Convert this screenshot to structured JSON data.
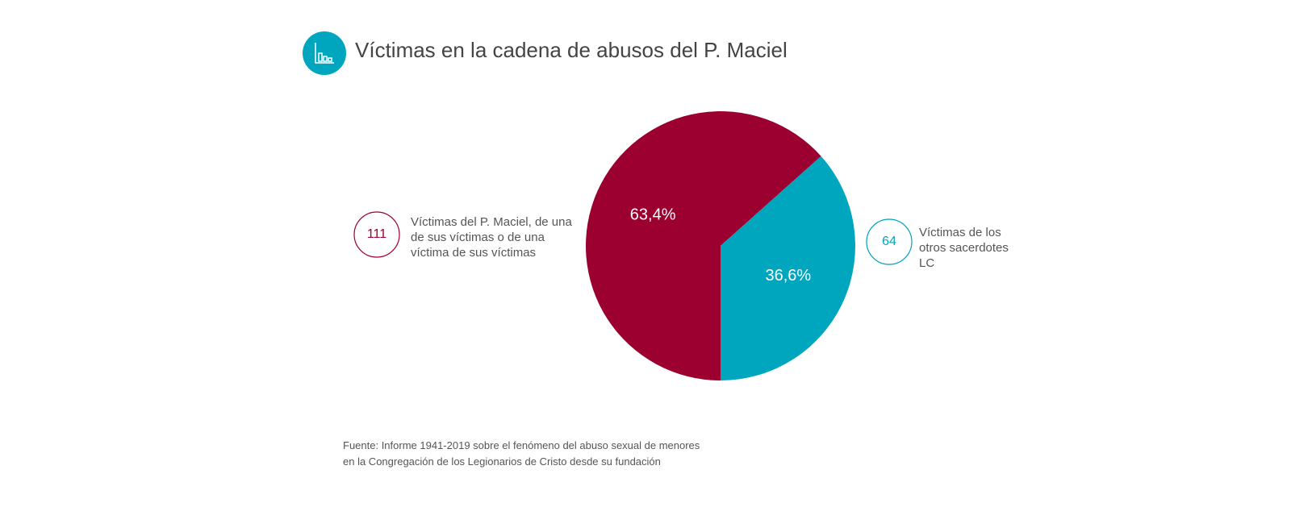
{
  "chart_data": {
    "type": "pie",
    "title": "Víctimas en la cadena de abusos del P. Maciel",
    "categories": [
      "Víctimas del P. Maciel, de una de sus víctimas o de una víctima de sus víctimas",
      "Víctimas de los otros sacerdotes LC"
    ],
    "values": [
      63.4,
      36.6
    ],
    "value_labels": [
      "63,4%",
      "36,6%"
    ],
    "counts": [
      111,
      64
    ],
    "colors": [
      "#9b0030",
      "#00a5be"
    ],
    "source": [
      "Fuente: Informe 1941-2019 sobre el fenómeno del abuso sexual de menores",
      "en la Congregación de los Legionarios de Cristo desde su fundación"
    ]
  }
}
